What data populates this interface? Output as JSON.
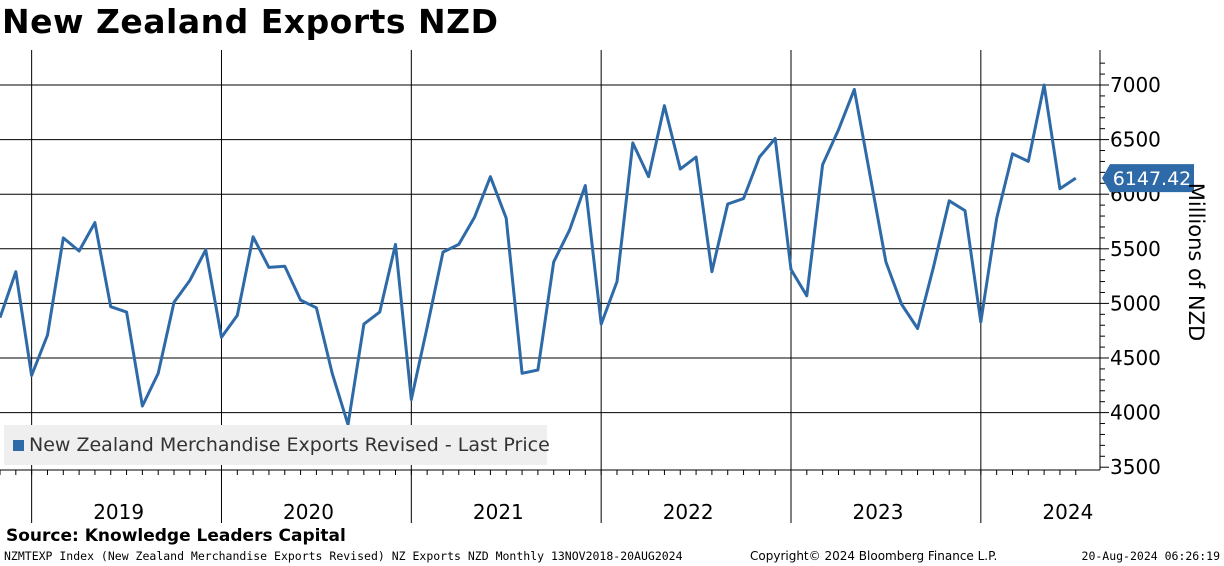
{
  "title": "New Zealand Exports NZD",
  "source": "Source: Knowledge Leaders Capital",
  "footer": {
    "left": "NZMTEXP Index (New Zealand Merchandise Exports Revised) NZ Exports NZD  Monthly 13NOV2018-20AUG2024",
    "center": "Copyright© 2024 Bloomberg Finance L.P.",
    "right": "20-Aug-2024 06:26:19"
  },
  "colors": {
    "line": "#2e6aa8",
    "grid": "#000000",
    "background": "#ffffff",
    "legend_bg": "#efefef"
  },
  "chart_data": {
    "type": "line",
    "title": "New Zealand Exports NZD",
    "xlabel": "",
    "ylabel": "Millions of NZD",
    "ylim": [
      3400,
      7300
    ],
    "yticks": [
      3500,
      4000,
      4500,
      5000,
      5500,
      6000,
      6500,
      7000
    ],
    "grid": true,
    "legend_position": "bottom-left",
    "year_labels": [
      "2019",
      "2020",
      "2021",
      "2022",
      "2023",
      "2024"
    ],
    "last_price_label": "6147.42",
    "series": [
      {
        "name": "New Zealand Merchandise Exports Revised - Last Price",
        "start": "2018-11",
        "values": [
          4870,
          5290,
          4340,
          4710,
          5600,
          5480,
          5740,
          4970,
          4920,
          4060,
          4360,
          5010,
          5210,
          5490,
          4690,
          4890,
          5610,
          5330,
          5340,
          5030,
          4960,
          4360,
          3890,
          4810,
          4920,
          5540,
          4120,
          4780,
          5470,
          5540,
          5790,
          6160,
          5780,
          4360,
          4390,
          5380,
          5670,
          6080,
          4810,
          5200,
          6470,
          6160,
          6810,
          6230,
          6340,
          5290,
          5910,
          5960,
          6340,
          6510,
          5310,
          5070,
          6270,
          6590,
          6960,
          6170,
          5380,
          4990,
          4770,
          5330,
          5940,
          5850,
          4830,
          5780,
          6370,
          6300,
          7000,
          6050,
          6147.42
        ]
      }
    ]
  }
}
